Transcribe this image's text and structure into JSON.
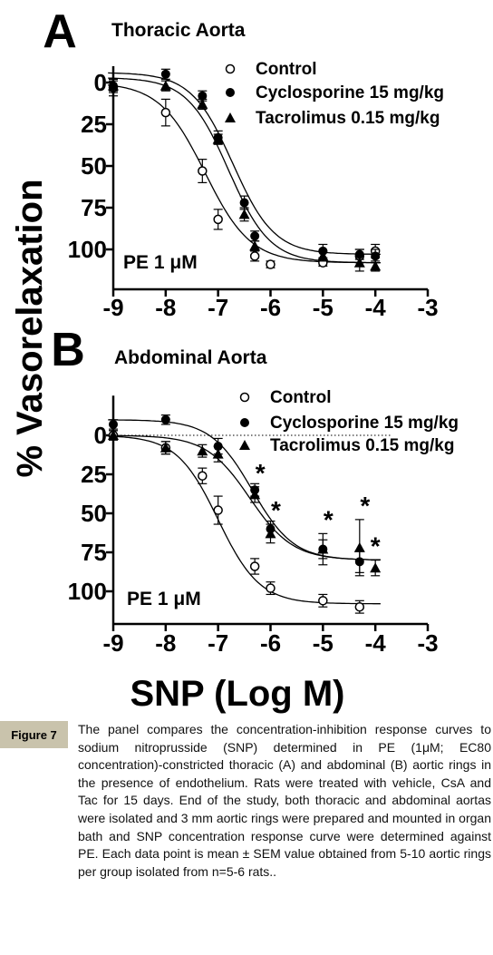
{
  "y_axis_title": "% Vasorelaxation",
  "x_axis_title": "SNP (Log M)",
  "legend": {
    "control": "Control",
    "cyclosporine": "Cyclosporine 15 mg/kg",
    "tacrolimus": "Tacrolimus 0.15 mg/kg"
  },
  "caption": {
    "tag": "Figure 7",
    "text": "The panel compares the concentration-inhibition response curves to sodium nitroprusside (SNP) determined in PE (1μM; EC80 concentration)-constricted thoracic (A) and abdominal (B) aortic rings in the presence of endothelium. Rats were treated with vehicle, CsA and Tac for 15 days. End of the study, both thoracic and abdominal aortas were isolated and 3 mm aortic rings were prepared and mounted in organ bath and SNP concentration response curve were determined against PE. Each data point is mean ± SEM value obtained from 5-10 aortic rings per group isolated from n=5-6 rats.."
  },
  "colors": {
    "ink": "#000000",
    "caption_tag_bg": "#c9c3ac"
  },
  "chart_data": [
    {
      "type": "scatter",
      "panel_letter": "A",
      "title": "Thoracic Aorta",
      "annotation": "PE 1 μM",
      "xlabel": "SNP (Log M)",
      "ylabel": "% Vasorelaxation",
      "xlim": [
        -9,
        -3
      ],
      "ylim": [
        0,
        110
      ],
      "y_inverted": true,
      "x_ticks": [
        -9,
        -8,
        -7,
        -6,
        -5,
        -4,
        -3
      ],
      "y_ticks": [
        0,
        25,
        50,
        75,
        100
      ],
      "series": [
        {
          "name": "Control",
          "marker": "open-circle",
          "x": [
            -9,
            -8,
            -7.3,
            -7,
            -6.3,
            -6,
            -5,
            -4.3,
            -4
          ],
          "y": [
            3,
            18,
            53,
            82,
            104,
            109,
            108,
            104,
            101
          ],
          "err": [
            5,
            8,
            7,
            6,
            3,
            2,
            2,
            4,
            4
          ]
        },
        {
          "name": "Cyclosporine 15 mg/kg",
          "marker": "filled-circle",
          "x": [
            -9,
            -8,
            -7.3,
            -7,
            -6.5,
            -6.3,
            -5,
            -4.3,
            -4
          ],
          "y": [
            2,
            -5,
            8,
            33,
            72,
            92,
            101,
            103,
            104
          ],
          "err": [
            4,
            3,
            3,
            4,
            4,
            3,
            4,
            3,
            4
          ]
        },
        {
          "name": "Tacrolimus 0.15 mg/kg",
          "marker": "filled-triangle",
          "x": [
            -9,
            -8,
            -7.3,
            -7,
            -6.5,
            -6.3,
            -5,
            -4.3,
            -4
          ],
          "y": [
            2,
            2,
            13,
            34,
            79,
            98,
            104,
            108,
            110
          ],
          "err": [
            3,
            3,
            3,
            3,
            4,
            3,
            3,
            5,
            3
          ]
        }
      ]
    },
    {
      "type": "scatter",
      "panel_letter": "B",
      "title": "Abdominal Aorta",
      "annotation": "PE 1 μM",
      "xlabel": "SNP (Log M)",
      "ylabel": "% Vasorelaxation",
      "xlim": [
        -9,
        -3
      ],
      "ylim": [
        -15,
        120
      ],
      "y_inverted": true,
      "dotted_zero_line": true,
      "x_ticks": [
        -9,
        -8,
        -7,
        -6,
        -5,
        -4,
        -3
      ],
      "y_ticks": [
        0,
        25,
        50,
        75,
        100
      ],
      "significance_marker": "*",
      "significance_x": [
        -6.3,
        -6,
        -5,
        -4.3,
        -4
      ],
      "series": [
        {
          "name": "Control",
          "marker": "open-circle",
          "x": [
            -9,
            -8,
            -7.3,
            -7,
            -6.3,
            -6,
            -5,
            -4.3
          ],
          "y": [
            0,
            8,
            26,
            48,
            84,
            98,
            106,
            110
          ],
          "err": [
            3,
            4,
            5,
            9,
            5,
            4,
            4,
            4
          ]
        },
        {
          "name": "Cyclosporine 15 mg/kg",
          "marker": "filled-circle",
          "x": [
            -9,
            -8,
            -7,
            -6.3,
            -6,
            -5,
            -4.3
          ],
          "y": [
            -7,
            -10,
            7,
            35,
            60,
            73,
            81
          ],
          "err": [
            3,
            3,
            5,
            4,
            5,
            6,
            7
          ]
        },
        {
          "name": "Tacrolimus 0.15 mg/kg",
          "marker": "filled-triangle",
          "x": [
            -9,
            -8,
            -7.3,
            -7,
            -6.3,
            -6,
            -5,
            -4.3,
            -4
          ],
          "y": [
            0,
            8,
            10,
            12,
            38,
            63,
            73,
            72,
            85
          ],
          "err": [
            3,
            4,
            4,
            5,
            5,
            6,
            10,
            18,
            5
          ]
        }
      ]
    }
  ]
}
